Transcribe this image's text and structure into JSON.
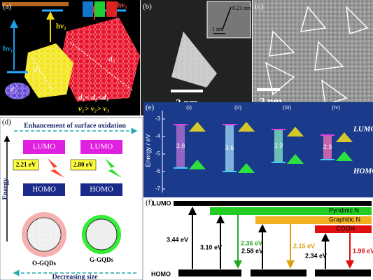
{
  "panel_a": {
    "label": "(a)",
    "hv3": "hν₃",
    "hv2": "hν₂",
    "hv1": "hν₁",
    "d3": "d₃",
    "d2": "d₂",
    "d1": "d₁",
    "size_order": "d₁< d₂<d₃",
    "freq_order": "ν₁> ν₂> ν₃"
  },
  "panel_b": {
    "label": "(b)",
    "lattice": "0.21 nm",
    "inset_scale": "1 nm",
    "scale": "2 nm"
  },
  "panel_c": {
    "label": "(c)",
    "scale": "2 nm"
  },
  "panel_d": {
    "label": "(d)",
    "top_arrow": "Enhancement of surface oxidation",
    "axis": "Energy",
    "lumo_left": "LUMO",
    "lumo_right": "LUMO",
    "gap_left": "2.21 eV",
    "gap_right": "2.80 eV",
    "homo_left": "HOMO",
    "homo_right": "HOMO",
    "name_left": "O-GQDs",
    "name_right": "G-GQDs",
    "bottom_arrow": "Decreasing size"
  },
  "panel_e": {
    "label": "(e)",
    "axis": "Energy / eV",
    "ticks": [
      "-3",
      "-4",
      "-5",
      "-6",
      "-7"
    ],
    "columns": [
      "(i)",
      "(ii)",
      "(iii)",
      "(iv)"
    ],
    "gaps": [
      "3.8",
      "3.6",
      "2.9",
      "2.3"
    ],
    "lumo": "LUMO",
    "homo": "HOMO"
  },
  "panel_f": {
    "label": "(f)",
    "lumo": "LUMO",
    "homo": "HOMO",
    "levels": [
      "Pyridinic N",
      "Graphitic N",
      "COOH"
    ],
    "gaps": [
      "3.44 eV",
      "3.10 eV",
      "2.36 eV",
      "2.58 eV",
      "2.15 eV",
      "2.34 eV",
      "1.98 eV"
    ]
  }
}
